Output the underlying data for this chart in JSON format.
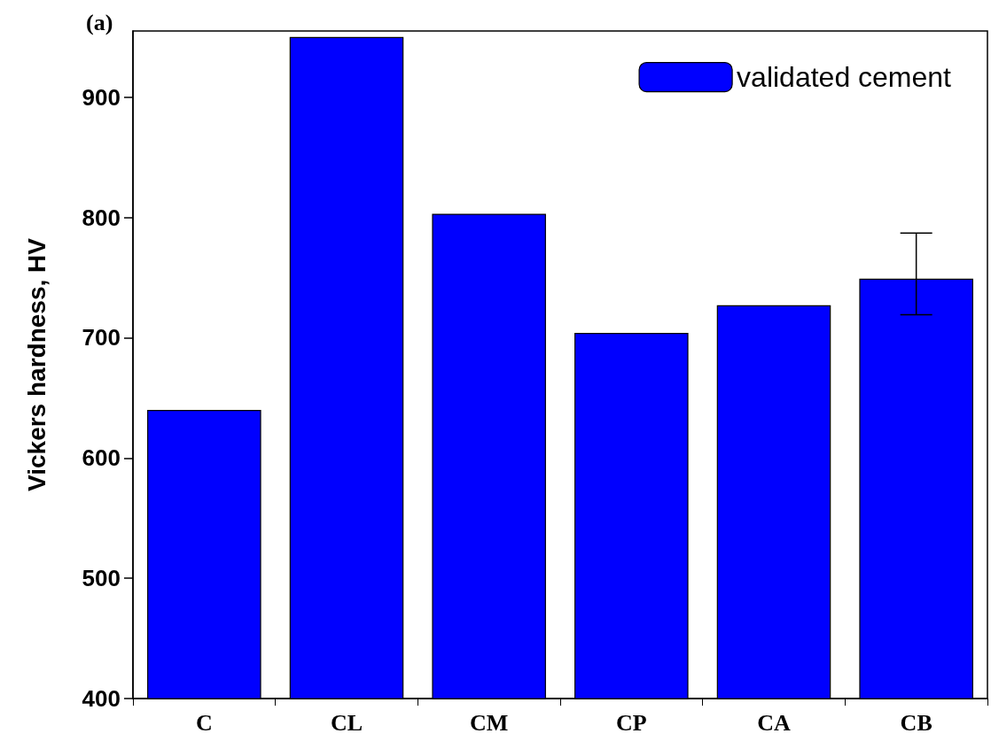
{
  "chart_data": {
    "type": "bar",
    "ylabel": "Vickers hardness, HV",
    "annotations": [
      "(a)"
    ],
    "categories": [
      "C",
      "CL",
      "CM",
      "CP",
      "CA",
      "CB"
    ],
    "series": [
      {
        "name": "validated cement",
        "color": "#0000ff",
        "values": [
          640,
          950,
          803,
          704,
          727,
          749
        ],
        "errors": [
          null,
          null,
          null,
          null,
          null,
          [
            719,
            787
          ]
        ]
      }
    ],
    "ylim": [
      400,
      955
    ],
    "yticks": [
      400,
      500,
      600,
      700,
      800,
      900
    ],
    "grid": false,
    "legend": "top right"
  }
}
